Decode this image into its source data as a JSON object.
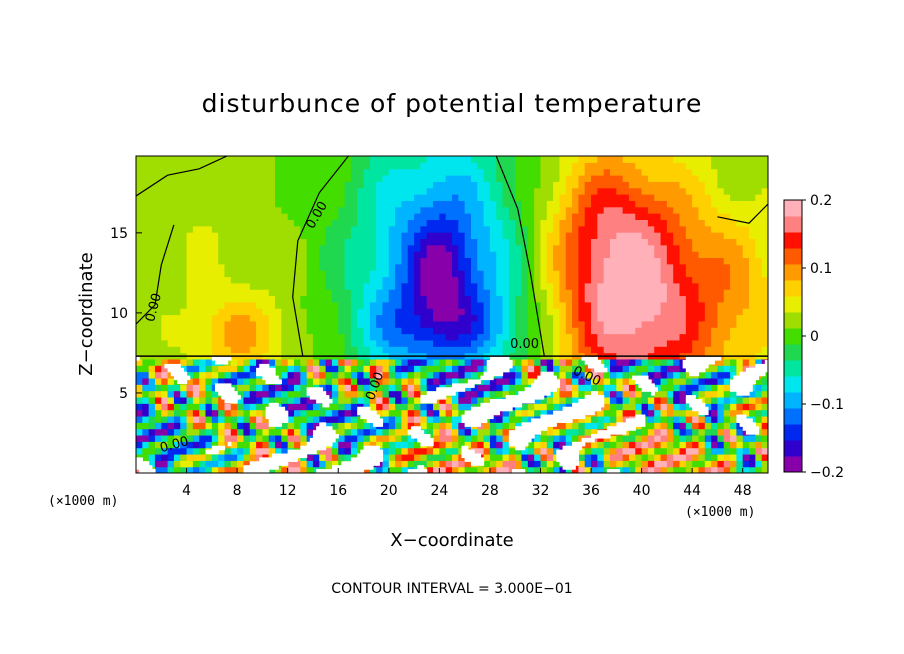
{
  "chart_data": {
    "type": "heatmap",
    "title": "disturbunce of potential temperature",
    "xlabel": "X−coordinate",
    "ylabel": "Z−coordinate",
    "x_unit": "(×1000 m)",
    "y_unit": "(×1000 m)",
    "xlim": [
      0,
      50
    ],
    "ylim": [
      0,
      19.8
    ],
    "x_ticks": [
      4,
      8,
      12,
      16,
      20,
      24,
      28,
      32,
      36,
      40,
      44,
      48
    ],
    "y_ticks": [
      5,
      10,
      15
    ],
    "colorbar": {
      "range": [
        -0.2,
        0.2
      ],
      "tick_values": [
        0.2,
        0.1,
        0,
        -0.1,
        -0.2
      ],
      "tick_labels": [
        "0.2",
        "0.1",
        "0",
        "−0.1",
        "−0.2"
      ],
      "colors": [
        "#8800aa",
        "#3000cc",
        "#0028ee",
        "#0070ff",
        "#00b4ff",
        "#00e6ee",
        "#00e6a0",
        "#20d850",
        "#44dd00",
        "#a0dd00",
        "#e8ee00",
        "#ffd000",
        "#ff9a00",
        "#ff5a00",
        "#ff1000",
        "#ff8080",
        "#ffb0b8"
      ]
    },
    "contour_labels": [
      "0.00",
      "0.00",
      "0.00",
      "0.00",
      "0.00",
      "0.00"
    ],
    "field_description": "negative anomaly centered near x=24, z=12; positive anomaly centered near x=39, z=10; turbulent mixed layer below z=7.3",
    "blobs": [
      {
        "x": 24,
        "z": 12.5,
        "sx": 5.2,
        "sz": 6.5,
        "a": -0.14
      },
      {
        "x": 24.2,
        "z": 12.3,
        "sx": 1.6,
        "sz": 2.5,
        "a": -0.07
      },
      {
        "x": 21,
        "z": 9.2,
        "sx": 2.4,
        "sz": 1.5,
        "a": -0.04
      },
      {
        "x": 27.5,
        "z": 9.2,
        "sx": 2.3,
        "sz": 1.5,
        "a": -0.04
      },
      {
        "x": 39.5,
        "z": 10.5,
        "sx": 4.5,
        "sz": 5.5,
        "a": 0.17
      },
      {
        "x": 36.5,
        "z": 15.5,
        "sx": 3.5,
        "sz": 4,
        "a": 0.06
      },
      {
        "x": 8,
        "z": 8.5,
        "sx": 3,
        "sz": 2,
        "a": 0.07
      },
      {
        "x": 5,
        "z": 15,
        "sx": 4,
        "sz": 3.5,
        "a": 0.02
      },
      {
        "x": 15,
        "z": 12,
        "sx": 4,
        "sz": 6,
        "a": 0.01
      },
      {
        "x": 48,
        "z": 11,
        "sx": 3,
        "sz": 4,
        "a": 0.05
      }
    ],
    "boundary_layer_top": 7.3,
    "contour_zero": [
      [
        [
          0.0,
          17.3
        ],
        [
          2.5,
          18.6
        ],
        [
          5.0,
          19.0
        ],
        [
          7.2,
          19.8
        ]
      ],
      [
        [
          13.2,
          7.3
        ],
        [
          12.4,
          11.0
        ],
        [
          12.8,
          14.5
        ],
        [
          14.5,
          17.5
        ],
        [
          16.2,
          19.2
        ],
        [
          16.8,
          19.8
        ]
      ],
      [
        [
          28.5,
          19.8
        ],
        [
          30.2,
          16.5
        ],
        [
          31.2,
          12.5
        ],
        [
          32.3,
          7.3
        ]
      ],
      [
        [
          0.0,
          9.3
        ],
        [
          1.5,
          10.5
        ],
        [
          2.0,
          13.0
        ],
        [
          3.0,
          15.5
        ]
      ],
      [
        [
          46.0,
          16.0
        ],
        [
          48.5,
          15.6
        ],
        [
          50.0,
          16.8
        ]
      ]
    ]
  }
}
